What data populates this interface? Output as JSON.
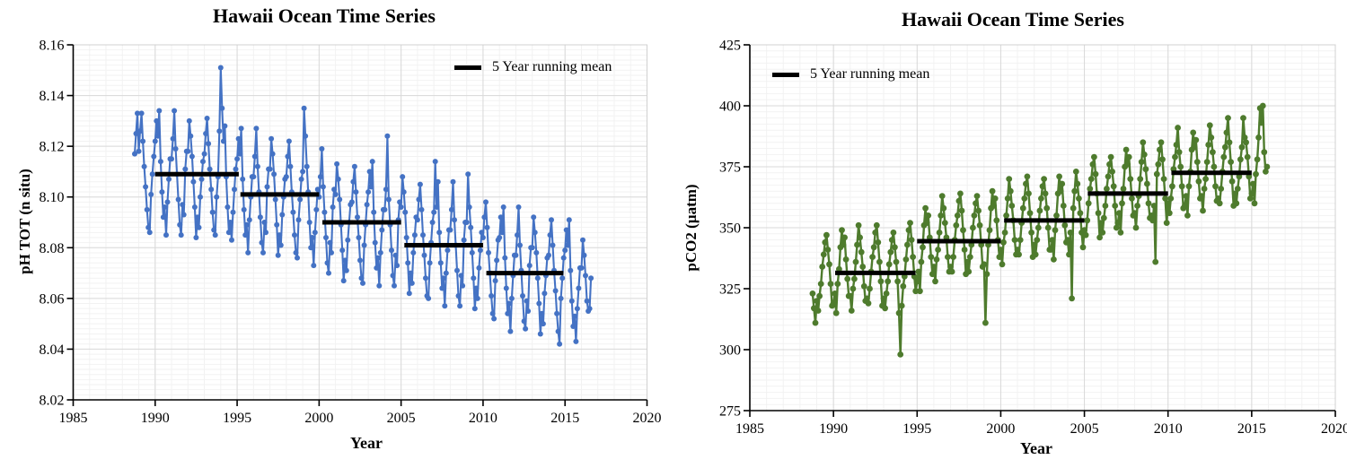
{
  "figure": {
    "background": "#ffffff"
  },
  "chart_data": [
    {
      "type": "line",
      "title": "Hawaii Ocean Time Series",
      "xlabel": "Year",
      "ylabel": "pH TOT (n situ)",
      "legend": {
        "label": "5 Year running mean",
        "color": "#000000",
        "position": "top-right-inside"
      },
      "color": "#4472C4",
      "grid": true,
      "xlim": [
        1985,
        2020
      ],
      "ylim": [
        8.02,
        8.16
      ],
      "x_ticks": [
        1985,
        1990,
        1995,
        2000,
        2005,
        2010,
        2015,
        2020
      ],
      "x_tick_labels": [
        "1985",
        "1990",
        "1995",
        "2000",
        "2005",
        "2010",
        "2015",
        "2020"
      ],
      "y_ticks": [
        8.02,
        8.04,
        8.06,
        8.08,
        8.1,
        8.12,
        8.14,
        8.16
      ],
      "y_tick_labels": [
        "8.02",
        "8.04",
        "8.06",
        "8.08",
        "8.10",
        "8.12",
        "8.14",
        "8.16"
      ],
      "x_minor_step": 1,
      "y_minor_step": 0.002,
      "running_mean_segments": [
        {
          "x1": 1990.0,
          "x2": 1995.1,
          "y": 8.109
        },
        {
          "x1": 1995.2,
          "x2": 2000.0,
          "y": 8.101
        },
        {
          "x1": 2000.2,
          "x2": 2005.0,
          "y": 8.09
        },
        {
          "x1": 2005.2,
          "x2": 2010.0,
          "y": 8.081
        },
        {
          "x1": 2010.2,
          "x2": 2014.9,
          "y": 8.07
        }
      ],
      "points": {
        "x_start": 1988.75,
        "x_step": 0.083333,
        "values": [
          8.117,
          8.125,
          8.133,
          8.118,
          8.126,
          8.133,
          8.122,
          8.112,
          8.104,
          8.095,
          8.088,
          8.086,
          8.101,
          8.109,
          8.116,
          8.122,
          8.13,
          8.124,
          8.134,
          8.114,
          8.102,
          8.092,
          8.096,
          8.085,
          8.098,
          8.107,
          8.115,
          8.115,
          8.123,
          8.134,
          8.119,
          8.109,
          8.099,
          8.089,
          8.085,
          8.097,
          8.093,
          8.111,
          8.118,
          8.118,
          8.13,
          8.124,
          8.116,
          8.106,
          8.096,
          8.084,
          8.092,
          8.088,
          8.1,
          8.107,
          8.114,
          8.117,
          8.125,
          8.131,
          8.121,
          8.111,
          8.103,
          8.094,
          8.087,
          8.085,
          8.1,
          8.108,
          8.126,
          8.151,
          8.135,
          8.122,
          8.128,
          8.108,
          8.096,
          8.086,
          8.09,
          8.083,
          8.094,
          8.103,
          8.111,
          8.115,
          8.123,
          8.117,
          8.127,
          8.107,
          8.095,
          8.085,
          8.089,
          8.078,
          8.091,
          8.1,
          8.108,
          8.108,
          8.116,
          8.127,
          8.112,
          8.102,
          8.092,
          8.082,
          8.078,
          8.09,
          8.086,
          8.104,
          8.111,
          8.111,
          8.123,
          8.117,
          8.109,
          8.099,
          8.089,
          8.077,
          8.085,
          8.081,
          8.093,
          8.1,
          8.107,
          8.108,
          8.116,
          8.122,
          8.112,
          8.102,
          8.094,
          8.085,
          8.078,
          8.076,
          8.091,
          8.099,
          8.107,
          8.11,
          8.135,
          8.124,
          8.112,
          8.102,
          8.09,
          8.08,
          8.084,
          8.073,
          8.086,
          8.095,
          8.103,
          8.1,
          8.108,
          8.119,
          8.104,
          8.094,
          8.084,
          8.074,
          8.07,
          8.082,
          8.078,
          8.096,
          8.103,
          8.101,
          8.113,
          8.107,
          8.099,
          8.089,
          8.079,
          8.067,
          8.075,
          8.071,
          8.083,
          8.09,
          8.097,
          8.098,
          8.106,
          8.112,
          8.102,
          8.092,
          8.084,
          8.075,
          8.068,
          8.066,
          8.081,
          8.089,
          8.097,
          8.102,
          8.11,
          8.104,
          8.114,
          8.094,
          8.082,
          8.072,
          8.076,
          8.065,
          8.078,
          8.087,
          8.095,
          8.095,
          8.103,
          8.124,
          8.099,
          8.089,
          8.079,
          8.069,
          8.065,
          8.077,
          8.073,
          8.091,
          8.098,
          8.096,
          8.108,
          8.102,
          8.094,
          8.084,
          8.074,
          8.062,
          8.07,
          8.066,
          8.078,
          8.085,
          8.092,
          8.091,
          8.099,
          8.105,
          8.095,
          8.085,
          8.077,
          8.068,
          8.061,
          8.06,
          8.074,
          8.082,
          8.09,
          8.094,
          8.114,
          8.096,
          8.106,
          8.086,
          8.074,
          8.064,
          8.068,
          8.057,
          8.07,
          8.079,
          8.087,
          8.087,
          8.095,
          8.106,
          8.091,
          8.081,
          8.071,
          8.061,
          8.057,
          8.069,
          8.065,
          8.083,
          8.09,
          8.09,
          8.109,
          8.096,
          8.088,
          8.078,
          8.068,
          8.056,
          8.064,
          8.06,
          8.072,
          8.079,
          8.086,
          8.084,
          8.092,
          8.098,
          8.088,
          8.078,
          8.07,
          8.061,
          8.054,
          8.052,
          8.067,
          8.075,
          8.083,
          8.084,
          8.092,
          8.086,
          8.096,
          8.076,
          8.064,
          8.054,
          8.058,
          8.047,
          8.06,
          8.069,
          8.077,
          8.077,
          8.085,
          8.096,
          8.081,
          8.071,
          8.061,
          8.051,
          8.048,
          8.059,
          8.055,
          8.073,
          8.08,
          8.08,
          8.092,
          8.086,
          8.078,
          8.068,
          8.058,
          8.046,
          8.054,
          8.05,
          8.062,
          8.069,
          8.076,
          8.077,
          8.085,
          8.091,
          8.081,
          8.071,
          8.063,
          8.054,
          8.047,
          8.042,
          8.06,
          8.068,
          8.076,
          8.079,
          8.087,
          8.081,
          8.091,
          8.071,
          8.059,
          8.049,
          8.053,
          8.043,
          8.056,
          8.064,
          8.072,
          8.072,
          8.083,
          8.077,
          8.069,
          8.059,
          8.055,
          8.056,
          8.068
        ]
      }
    },
    {
      "type": "line",
      "title": "Hawaii Ocean Time Series",
      "xlabel": "Year",
      "ylabel": "pCO2 (µatm)",
      "legend": {
        "label": "5 Year running mean",
        "color": "#000000",
        "position": "top-left-inside"
      },
      "color": "#4E7B2D",
      "grid": true,
      "xlim": [
        1985,
        2020
      ],
      "ylim": [
        275,
        425
      ],
      "x_ticks": [
        1985,
        1990,
        1995,
        2000,
        2005,
        2010,
        2015,
        2020
      ],
      "x_tick_labels": [
        "1985",
        "1990",
        "1995",
        "2000",
        "2005",
        "2010",
        "2015",
        "2020"
      ],
      "y_ticks": [
        275,
        300,
        325,
        350,
        375,
        400,
        425
      ],
      "y_tick_labels": [
        "275",
        "300",
        "325",
        "350",
        "375",
        "400",
        "425"
      ],
      "x_minor_step": 1,
      "y_minor_step": 2.5,
      "running_mean_segments": [
        {
          "x1": 1990.1,
          "x2": 1994.9,
          "y": 331.5
        },
        {
          "x1": 1995.0,
          "x2": 2000.0,
          "y": 344.5
        },
        {
          "x1": 2000.2,
          "x2": 2005.0,
          "y": 353.0
        },
        {
          "x1": 2005.2,
          "x2": 2010.0,
          "y": 364.0
        },
        {
          "x1": 2010.2,
          "x2": 2015.0,
          "y": 372.5
        }
      ],
      "points": {
        "x_start": 1988.75,
        "x_step": 0.083333,
        "values": [
          323,
          317,
          311,
          320,
          316,
          322,
          327,
          334,
          339,
          344,
          347,
          341,
          335,
          327,
          318,
          319,
          323,
          315,
          327,
          333,
          342,
          349,
          343,
          346,
          337,
          329,
          322,
          322,
          316,
          325,
          329,
          336,
          343,
          351,
          346,
          340,
          334,
          326,
          320,
          321,
          319,
          325,
          332,
          338,
          342,
          348,
          351,
          344,
          336,
          328,
          318,
          321,
          317,
          323,
          328,
          335,
          340,
          345,
          348,
          342,
          336,
          328,
          315,
          298,
          318,
          326,
          330,
          337,
          343,
          349,
          352,
          345,
          338,
          330,
          324,
          328,
          332,
          324,
          336,
          342,
          351,
          358,
          352,
          355,
          346,
          338,
          331,
          334,
          328,
          337,
          341,
          348,
          355,
          363,
          358,
          352,
          346,
          338,
          332,
          334,
          332,
          338,
          345,
          351,
          355,
          361,
          364,
          357,
          349,
          341,
          331,
          336,
          332,
          338,
          343,
          350,
          355,
          360,
          363,
          357,
          351,
          343,
          334,
          335,
          311,
          331,
          343,
          349,
          358,
          365,
          359,
          362,
          353,
          345,
          338,
          341,
          335,
          344,
          348,
          355,
          362,
          370,
          365,
          359,
          353,
          345,
          339,
          341,
          339,
          345,
          352,
          358,
          362,
          368,
          371,
          364,
          356,
          348,
          338,
          343,
          339,
          345,
          350,
          357,
          362,
          367,
          370,
          364,
          358,
          350,
          341,
          341,
          345,
          337,
          349,
          355,
          364,
          371,
          365,
          368,
          359,
          351,
          344,
          345,
          339,
          348,
          321,
          358,
          365,
          373,
          368,
          362,
          356,
          348,
          342,
          349,
          347,
          353,
          360,
          366,
          370,
          376,
          379,
          372,
          364,
          356,
          346,
          352,
          348,
          354,
          359,
          366,
          371,
          376,
          379,
          373,
          367,
          359,
          350,
          352,
          356,
          348,
          360,
          366,
          375,
          382,
          376,
          379,
          370,
          362,
          355,
          356,
          350,
          359,
          363,
          370,
          377,
          385,
          380,
          374,
          368,
          360,
          354,
          355,
          353,
          359,
          336,
          372,
          376,
          382,
          385,
          378,
          370,
          362,
          352,
          360,
          356,
          362,
          367,
          374,
          379,
          384,
          391,
          381,
          375,
          367,
          358,
          359,
          363,
          355,
          367,
          373,
          382,
          389,
          383,
          386,
          377,
          369,
          362,
          363,
          357,
          366,
          370,
          377,
          384,
          392,
          387,
          381,
          375,
          367,
          361,
          362,
          360,
          366,
          373,
          379,
          383,
          389,
          395,
          385,
          377,
          369,
          359,
          364,
          360,
          366,
          371,
          378,
          383,
          395,
          387,
          385,
          379,
          371,
          362,
          364,
          368,
          360,
          372,
          378,
          387,
          399,
          393,
          400,
          381,
          373,
          375
        ]
      }
    }
  ]
}
